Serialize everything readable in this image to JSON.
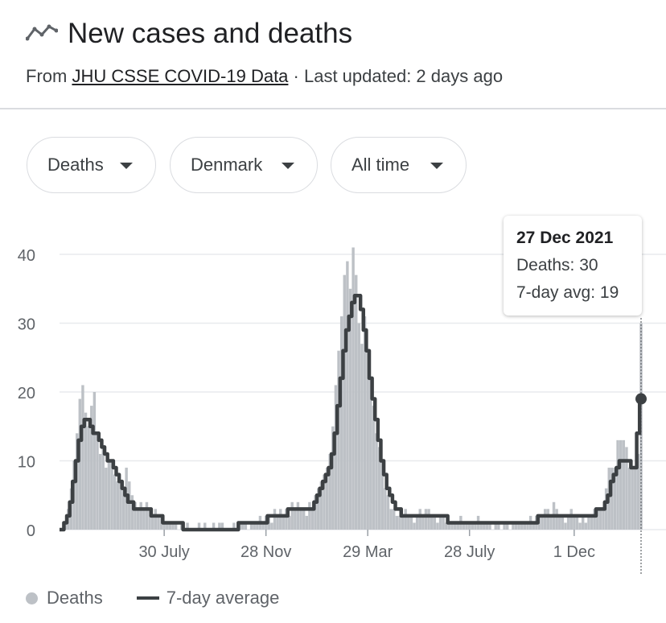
{
  "header": {
    "icon": "trending-line-icon",
    "title": "New cases and deaths",
    "subtitle_prefix": "From ",
    "source_link": "JHU CSSE COVID-19 Data",
    "subtitle_suffix": " · Last updated: 2 days ago"
  },
  "filters": {
    "metric": "Deaths",
    "location": "Denmark",
    "range": "All time"
  },
  "tooltip": {
    "date": "27 Dec 2021",
    "deaths_line": "Deaths: 30",
    "avg_line": "7-day avg: 19"
  },
  "legend": {
    "bars_label": "Deaths",
    "line_label": "7-day average"
  },
  "colors": {
    "bars": "#bdc1c6",
    "line": "#3c4043",
    "grid": "#e8eaed",
    "axis_text": "#5f6368"
  },
  "chart_data": {
    "type": "bar",
    "ylim": [
      0,
      45
    ],
    "yticks": [
      0,
      10,
      20,
      30,
      40
    ],
    "xticks": [
      "30 July",
      "28 Nov",
      "29 Mar",
      "28 July",
      "1 Dec"
    ],
    "highlight": {
      "date": "27 Dec 2021",
      "deaths": 30,
      "avg": 19
    },
    "series": [
      {
        "name": "Deaths",
        "kind": "bar",
        "values": [
          0,
          0,
          1,
          3,
          6,
          10,
          14,
          19,
          21,
          17,
          15,
          18,
          20,
          14,
          11,
          12,
          9,
          10,
          10,
          8,
          7,
          7,
          6,
          9,
          7,
          5,
          4,
          3,
          4,
          3,
          4,
          3,
          2,
          3,
          2,
          2,
          1,
          1,
          1,
          1,
          1,
          0,
          1,
          0,
          1,
          0,
          0,
          0,
          1,
          0,
          1,
          0,
          0,
          1,
          0,
          1,
          1,
          0,
          0,
          0,
          1,
          0,
          1,
          1,
          1,
          0,
          1,
          1,
          1,
          2,
          1,
          2,
          2,
          1,
          3,
          2,
          3,
          2,
          3,
          2,
          4,
          3,
          4,
          3,
          3,
          2,
          4,
          3,
          5,
          6,
          7,
          8,
          9,
          11,
          15,
          21,
          26,
          31,
          37,
          39,
          35,
          41,
          37,
          30,
          27,
          31,
          26,
          22,
          18,
          14,
          12,
          10,
          6,
          5,
          3,
          3,
          2,
          2,
          2,
          3,
          2,
          2,
          1,
          2,
          3,
          2,
          3,
          3,
          2,
          2,
          1,
          2,
          2,
          1,
          1,
          1,
          1,
          1,
          2,
          1,
          1,
          1,
          1,
          1,
          2,
          1,
          1,
          1,
          1,
          0,
          1,
          1,
          0,
          1,
          1,
          0,
          1,
          1,
          1,
          1,
          1,
          1,
          2,
          1,
          2,
          2,
          2,
          3,
          3,
          2,
          4,
          3,
          2,
          2,
          1,
          2,
          3,
          2,
          2,
          1,
          2,
          1,
          2,
          2,
          3,
          3,
          3,
          3,
          6,
          9,
          9,
          9,
          13,
          13,
          13,
          12,
          9,
          9,
          9,
          11,
          30
        ]
      },
      {
        "name": "7-day average",
        "kind": "line",
        "values": [
          0,
          0,
          1,
          2,
          4,
          7,
          10,
          13,
          15,
          16,
          16,
          15,
          14,
          14,
          13,
          12,
          11,
          10,
          10,
          9,
          8,
          7,
          6,
          5,
          4,
          4,
          3,
          3,
          3,
          3,
          3,
          3,
          2,
          2,
          2,
          2,
          1,
          1,
          1,
          1,
          1,
          1,
          1,
          0,
          0,
          0,
          0,
          0,
          0,
          0,
          0,
          0,
          0,
          0,
          0,
          0,
          0,
          0,
          0,
          0,
          0,
          0,
          1,
          1,
          1,
          1,
          1,
          1,
          1,
          1,
          1,
          1,
          2,
          2,
          2,
          2,
          2,
          2,
          2,
          3,
          3,
          3,
          3,
          3,
          3,
          3,
          3,
          3,
          4,
          5,
          6,
          7,
          8,
          9,
          11,
          14,
          18,
          22,
          26,
          29,
          31,
          33,
          34,
          34,
          32,
          29,
          26,
          22,
          19,
          16,
          13,
          10,
          8,
          6,
          5,
          4,
          3,
          3,
          2,
          2,
          2,
          2,
          2,
          2,
          2,
          2,
          2,
          2,
          2,
          2,
          2,
          2,
          2,
          2,
          1,
          1,
          1,
          1,
          1,
          1,
          1,
          1,
          1,
          1,
          1,
          1,
          1,
          1,
          1,
          1,
          1,
          1,
          1,
          1,
          1,
          1,
          1,
          1,
          1,
          1,
          1,
          1,
          1,
          1,
          1,
          2,
          2,
          2,
          2,
          2,
          2,
          2,
          2,
          2,
          2,
          2,
          2,
          2,
          2,
          2,
          2,
          2,
          2,
          2,
          2,
          3,
          3,
          3,
          4,
          5,
          7,
          8,
          9,
          10,
          10,
          10,
          10,
          9,
          9,
          14,
          19
        ]
      }
    ]
  }
}
